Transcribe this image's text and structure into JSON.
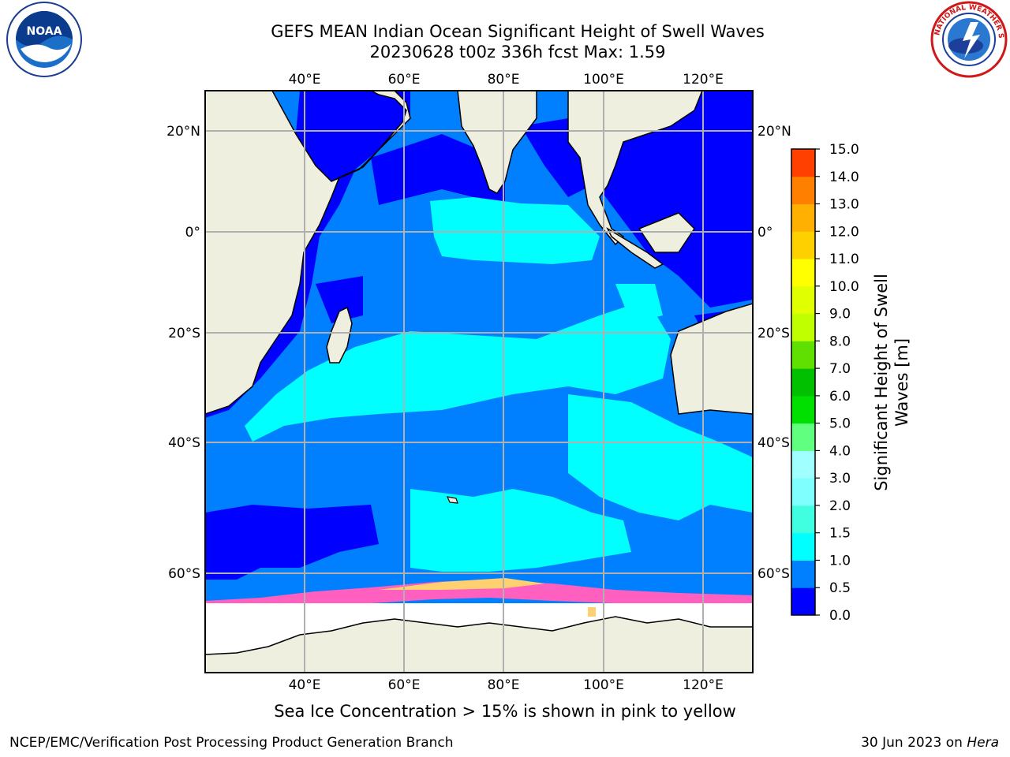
{
  "header": {
    "title_line1": "GEFS MEAN Indian Ocean Significant Height of Swell Waves",
    "title_line2": "20230628 t00z 336h fcst   Max: 1.59"
  },
  "logos": {
    "left": "noaa-logo",
    "right": "national-weather-service-logo",
    "right_text": "NATIONAL WEATHER SERVICE",
    "left_text": "NOAA"
  },
  "map": {
    "lon_labels": [
      "40°E",
      "60°E",
      "80°E",
      "100°E",
      "120°E"
    ],
    "lat_labels": [
      "20°N",
      "0°",
      "20°S",
      "40°S",
      "60°S"
    ],
    "lat_labels_right": [
      "20°N",
      "0°",
      "20°S",
      "40°S",
      "60°S"
    ],
    "ocean_color": "#0080ff",
    "land_color": "#efefdf",
    "gridline_color": "#b0b0b0"
  },
  "colorbar": {
    "label": "Significant Height of Swell Waves [m]",
    "label_line1": "Significant Height of Swell",
    "label_line2": "Waves [m]",
    "ticks": [
      "0.0",
      "0.5",
      "1.0",
      "1.5",
      "2.0",
      "3.0",
      "4.0",
      "5.0",
      "6.0",
      "7.0",
      "8.0",
      "9.0",
      "10.0",
      "11.0",
      "12.0",
      "13.0",
      "14.0",
      "15.0"
    ],
    "colors": [
      "#0000ff",
      "#0080ff",
      "#00ffff",
      "#40ffe0",
      "#80ffff",
      "#a0ffff",
      "#60ff80",
      "#00e000",
      "#00c000",
      "#60e000",
      "#c0ff00",
      "#e0ff00",
      "#ffff00",
      "#ffd000",
      "#ffb000",
      "#ff8000",
      "#ff4000",
      "#ff0000"
    ]
  },
  "caption": "Sea Ice Concentration > 15% is shown in pink to yellow",
  "footer": {
    "left": "NCEP/EMC/Verification Post Processing Product Generation Branch",
    "right_prefix": "30 Jun 2023 on ",
    "right_host": "Hera"
  }
}
